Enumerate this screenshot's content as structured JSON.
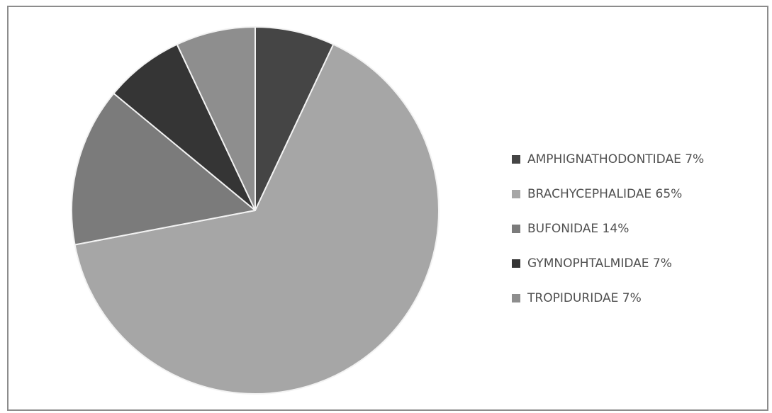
{
  "chart_data": {
    "type": "pie",
    "title": "",
    "slices": [
      {
        "label": "AMPHIGNATHODONTIDAE 7%",
        "value": 7,
        "color": "#454545"
      },
      {
        "label": "BRACHYCEPHALIDAE 65%",
        "value": 65,
        "color": "#a6a6a6"
      },
      {
        "label": "BUFONIDAE 14%",
        "value": 14,
        "color": "#7b7b7b"
      },
      {
        "label": "GYMNOPHTALMIDAE 7%",
        "value": 7,
        "color": "#353535"
      },
      {
        "label": "TROPIDURIDAE 7%",
        "value": 7,
        "color": "#8e8e8e"
      }
    ],
    "legend_position": "right",
    "slice_border_color": "#f2f2f2"
  }
}
